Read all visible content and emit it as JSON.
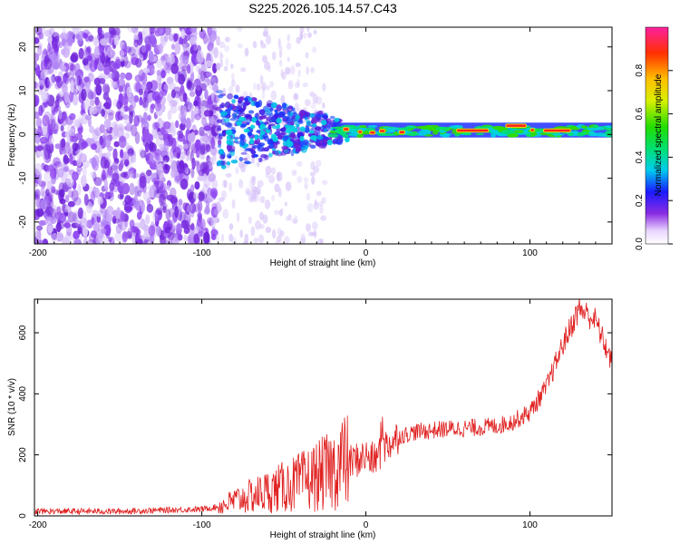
{
  "title": "S225.2026.105.14.57.C43",
  "chart_data": [
    {
      "type": "heatmap",
      "name": "spectrogram",
      "xlabel": "Height of straight line (km)",
      "ylabel": "Frequency (Hz)",
      "xlim": [
        -202,
        150
      ],
      "ylim": [
        -25,
        24.5
      ],
      "xticks": [
        -200,
        -100,
        0,
        100
      ],
      "yticks": [
        -20,
        -10,
        0,
        10,
        20
      ],
      "colorbar": {
        "label": "Normalized spectral amplitude",
        "range": [
          0,
          1
        ],
        "ticks": [
          "0.0",
          "0.2",
          "0.4",
          "0.6",
          "0.8"
        ],
        "tick_values": [
          0,
          0.2,
          0.4,
          0.6,
          0.8
        ]
      },
      "signal_band_hz": [
        0.5,
        1.5
      ],
      "noise_region_km": [
        -202,
        -90
      ]
    },
    {
      "type": "line",
      "name": "snr",
      "xlabel": "Height of straight line (km)",
      "ylabel": "SNR (10 * v/v)",
      "xlim": [
        -202,
        150
      ],
      "ylim": [
        0,
        710
      ],
      "xticks": [
        -200,
        -100,
        0,
        100
      ],
      "yticks": [
        0,
        200,
        400,
        600
      ],
      "color": "#e02020",
      "trend": {
        "x": [
          -202,
          -150,
          -100,
          -90,
          -80,
          -60,
          -40,
          -30,
          -20,
          -15,
          -10,
          0,
          5,
          10,
          20,
          30,
          50,
          70,
          80,
          90,
          100,
          110,
          120,
          130,
          140,
          150
        ],
        "y": [
          15,
          15,
          22,
          30,
          50,
          80,
          110,
          130,
          150,
          180,
          175,
          195,
          180,
          220,
          260,
          275,
          285,
          290,
          295,
          310,
          340,
          420,
          560,
          680,
          640,
          500
        ]
      }
    }
  ]
}
